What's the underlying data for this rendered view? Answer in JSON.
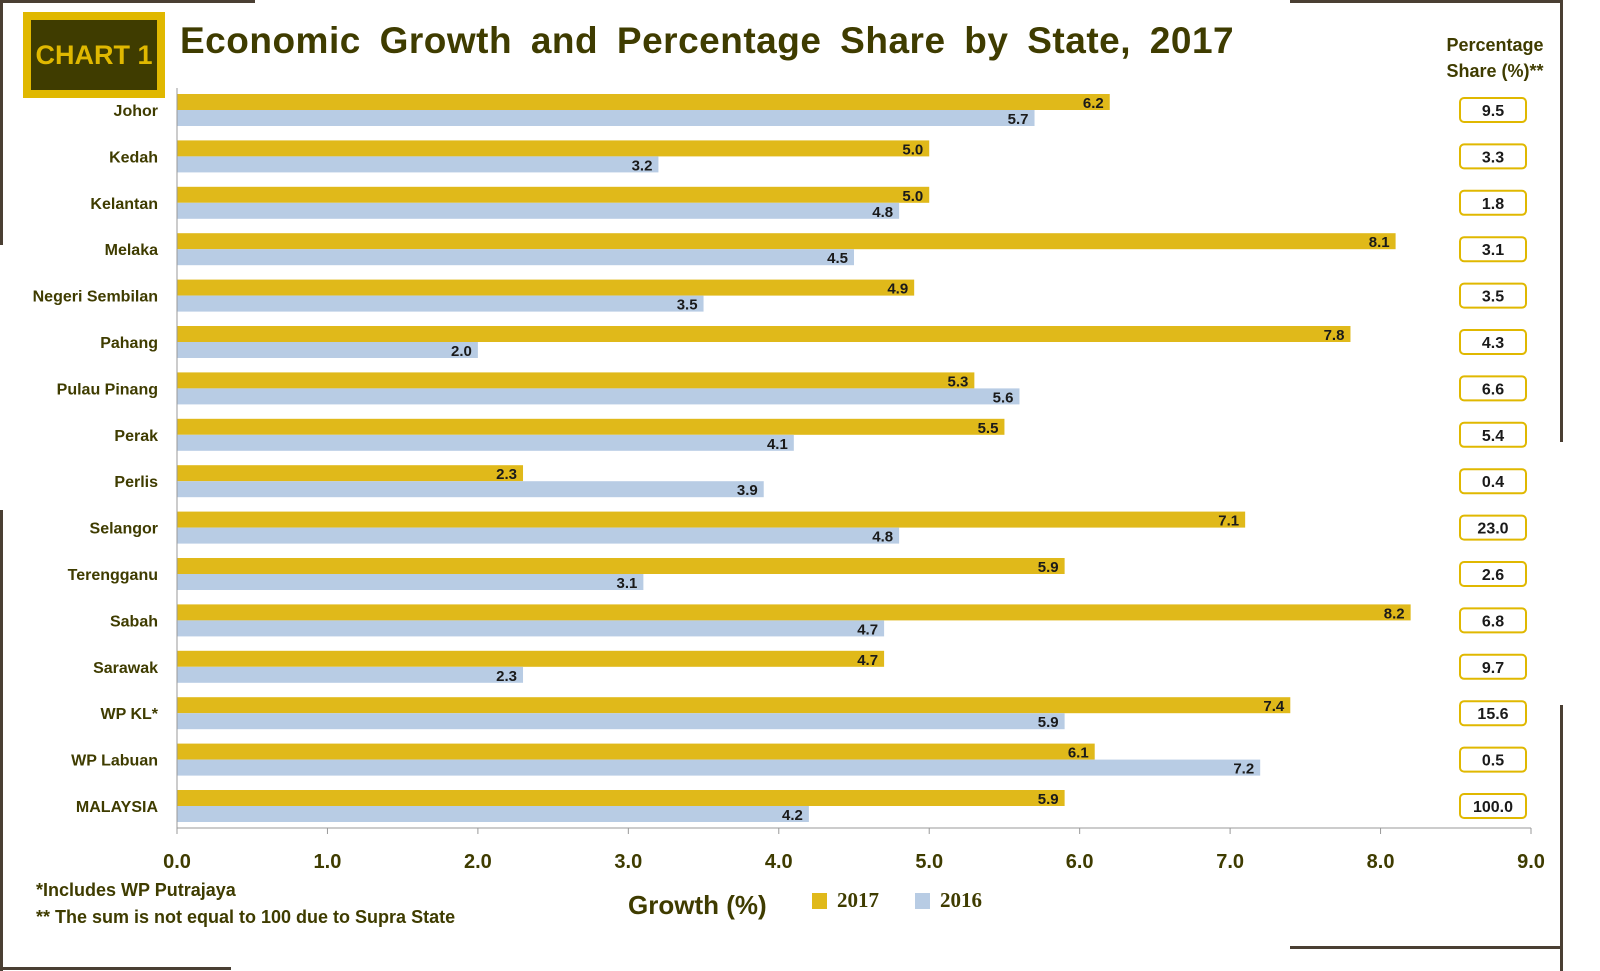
{
  "badge": "CHART 1",
  "title": "Economic Growth and Percentage Share by State, 2017",
  "share_header": "Percentage Share (%)**",
  "footnotes": [
    "*Includes WP Putrajaya",
    "** The sum is not equal to 100 due to Supra State"
  ],
  "colors": {
    "2017": "#e0b91a",
    "2016": "#b8cce4",
    "frame": "#4a3f33",
    "text": "#3f3c00"
  },
  "chart_data": {
    "type": "bar",
    "orientation": "horizontal",
    "title": "Economic Growth and Percentage Share by State, 2017",
    "xlabel": "Growth (%)",
    "xlim": [
      0,
      9
    ],
    "xticks": [
      "0.0",
      "1.0",
      "2.0",
      "3.0",
      "4.0",
      "5.0",
      "6.0",
      "7.0",
      "8.0",
      "9.0"
    ],
    "grid": false,
    "legend_position": "bottom",
    "categories": [
      "Johor",
      "Kedah",
      "Kelantan",
      "Melaka",
      "Negeri Sembilan",
      "Pahang",
      "Pulau Pinang",
      "Perak",
      "Perlis",
      "Selangor",
      "Terengganu",
      "Sabah",
      "Sarawak",
      "WP KL*",
      "WP Labuan",
      "MALAYSIA"
    ],
    "series": [
      {
        "name": "2017",
        "values": [
          6.2,
          5.0,
          5.0,
          8.1,
          4.9,
          7.8,
          5.3,
          5.5,
          2.3,
          7.1,
          5.9,
          8.2,
          4.7,
          7.4,
          6.1,
          5.9
        ]
      },
      {
        "name": "2016",
        "values": [
          5.7,
          3.2,
          4.8,
          4.5,
          3.5,
          2.0,
          5.6,
          4.1,
          3.9,
          4.8,
          3.1,
          4.7,
          2.3,
          5.9,
          7.2,
          4.2
        ]
      }
    ],
    "percentage_share": [
      "9.5",
      "3.3",
      "1.8",
      "3.1",
      "3.5",
      "4.3",
      "6.6",
      "5.4",
      "0.4",
      "23.0",
      "2.6",
      "6.8",
      "9.7",
      "15.6",
      "0.5",
      "100.0"
    ]
  }
}
